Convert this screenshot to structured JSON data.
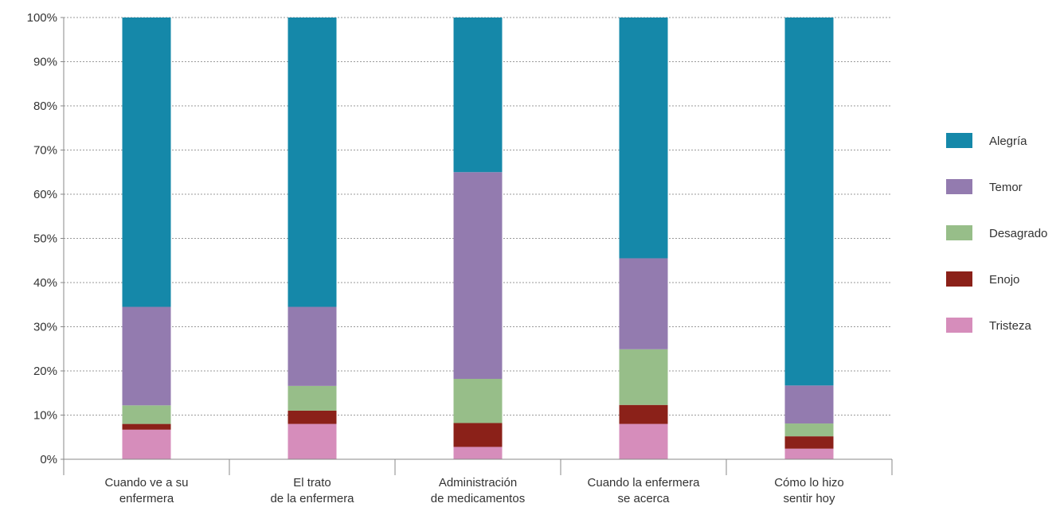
{
  "chart_data": {
    "type": "bar",
    "stacked": true,
    "y_format": "percent",
    "ylim": [
      0,
      100
    ],
    "yticks": [
      0,
      10,
      20,
      30,
      40,
      50,
      60,
      70,
      80,
      90,
      100
    ],
    "ytick_labels": [
      "0%",
      "10%",
      "20%",
      "30%",
      "40%",
      "50%",
      "60%",
      "70%",
      "80%",
      "90%",
      "100%"
    ],
    "grid": "horizontal-dotted",
    "legend_position": "right",
    "categories": [
      [
        "Cuando ve a su",
        "enfermera"
      ],
      [
        "El trato",
        "de la enfermera"
      ],
      [
        "Administración",
        "de medicamentos"
      ],
      [
        "Cuando la enfermera",
        "se acerca"
      ],
      [
        "Cómo lo hizo",
        "sentir hoy"
      ]
    ],
    "series": [
      {
        "name": "Tristeza",
        "color": "#d68dbb",
        "values": [
          6.7,
          8.0,
          2.8,
          8.0,
          2.4
        ]
      },
      {
        "name": "Enojo",
        "color": "#8b2119",
        "values": [
          1.3,
          3.0,
          5.4,
          4.3,
          2.8
        ]
      },
      {
        "name": "Desagrado",
        "color": "#97be89",
        "values": [
          4.2,
          5.6,
          10.0,
          12.6,
          2.9
        ]
      },
      {
        "name": "Temor",
        "color": "#937baf",
        "values": [
          22.3,
          17.9,
          46.8,
          20.6,
          8.6
        ]
      },
      {
        "name": "Alegría",
        "color": "#1588a9",
        "values": [
          65.5,
          65.5,
          35.0,
          54.5,
          83.3
        ]
      }
    ],
    "legend_order": [
      "Alegría",
      "Temor",
      "Desagrado",
      "Enojo",
      "Tristeza"
    ]
  }
}
